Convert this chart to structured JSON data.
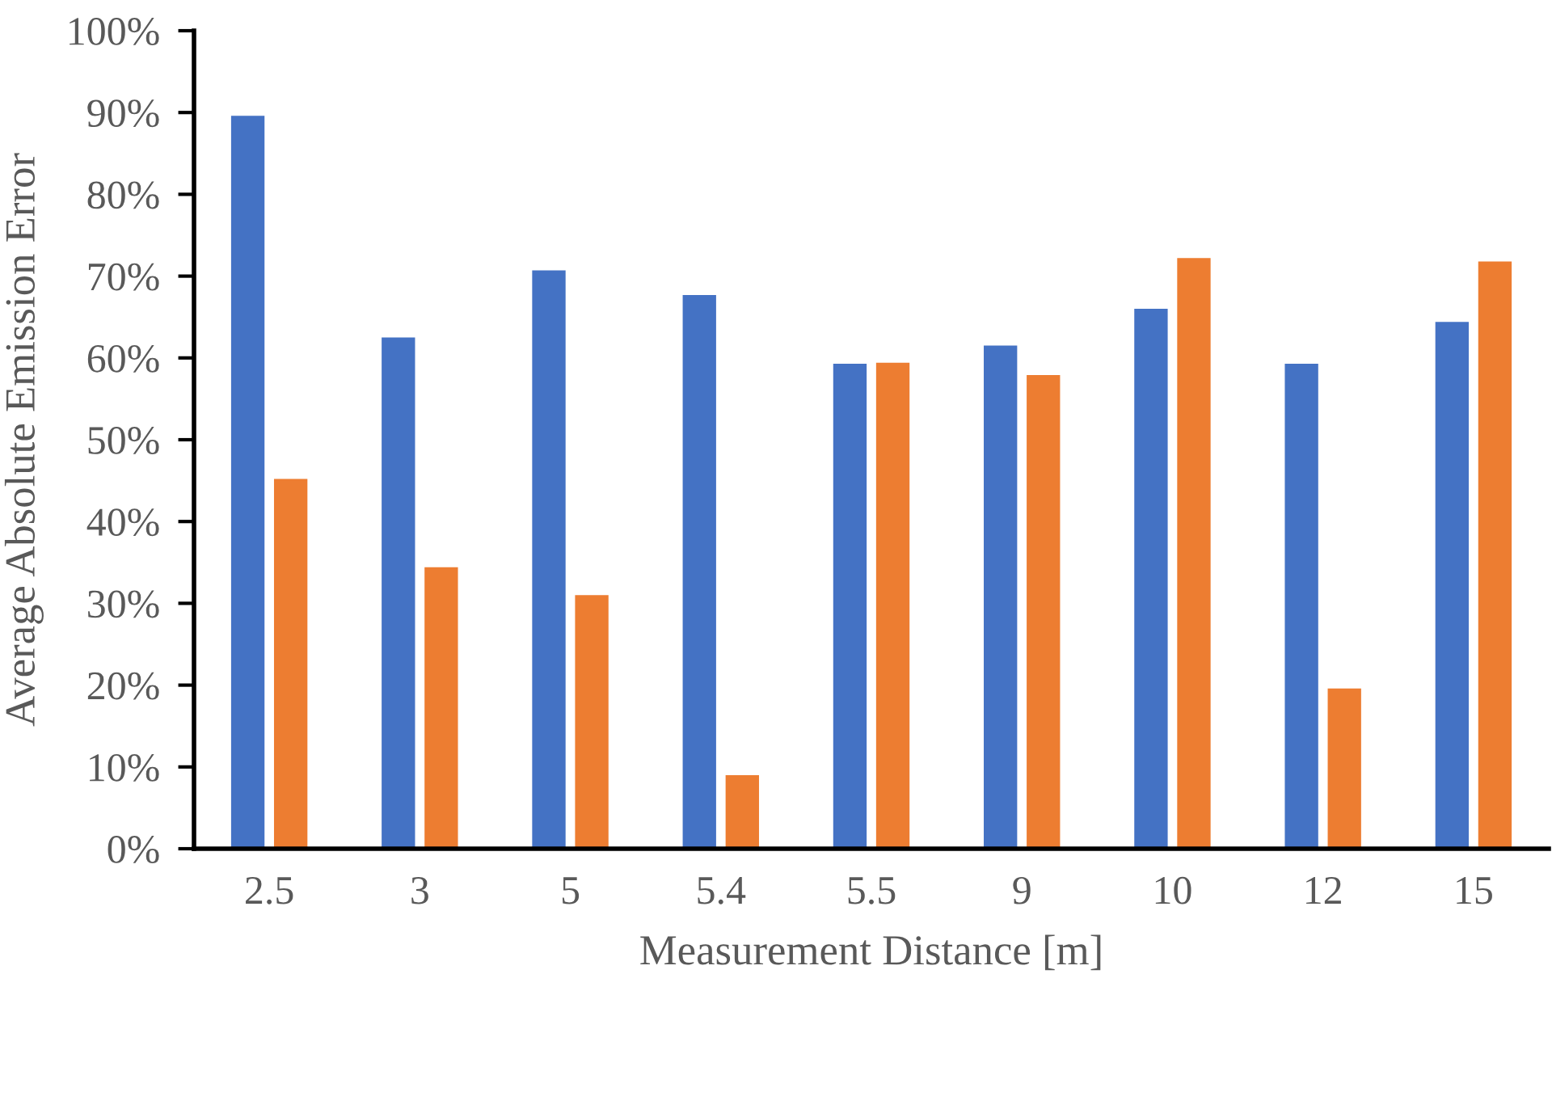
{
  "chart_data": {
    "type": "bar",
    "xlabel": "Measurement Distance [m]",
    "ylabel": "Average Absolute Emission Error",
    "categories": [
      "2.5",
      "3",
      "5",
      "5.4",
      "5.5",
      "9",
      "10",
      "12",
      "15"
    ],
    "series": [
      {
        "color": "#4472c4",
        "values": [
          89.6,
          62.5,
          70.7,
          67.7,
          59.3,
          61.5,
          66.0,
          59.3,
          64.4
        ]
      },
      {
        "color": "#ed7d31",
        "values": [
          45.2,
          34.4,
          31.0,
          9.0,
          59.4,
          57.9,
          72.2,
          19.6,
          71.8
        ]
      }
    ],
    "ylim": [
      0,
      100
    ],
    "yticks": [
      {
        "value": 0,
        "label": "0%"
      },
      {
        "value": 10,
        "label": "10%"
      },
      {
        "value": 20,
        "label": "20%"
      },
      {
        "value": 30,
        "label": "30%"
      },
      {
        "value": 40,
        "label": "40%"
      },
      {
        "value": 50,
        "label": "50%"
      },
      {
        "value": 60,
        "label": "60%"
      },
      {
        "value": 70,
        "label": "70%"
      },
      {
        "value": 80,
        "label": "80%"
      },
      {
        "value": 90,
        "label": "90%"
      },
      {
        "value": 100,
        "label": "100%"
      }
    ]
  }
}
